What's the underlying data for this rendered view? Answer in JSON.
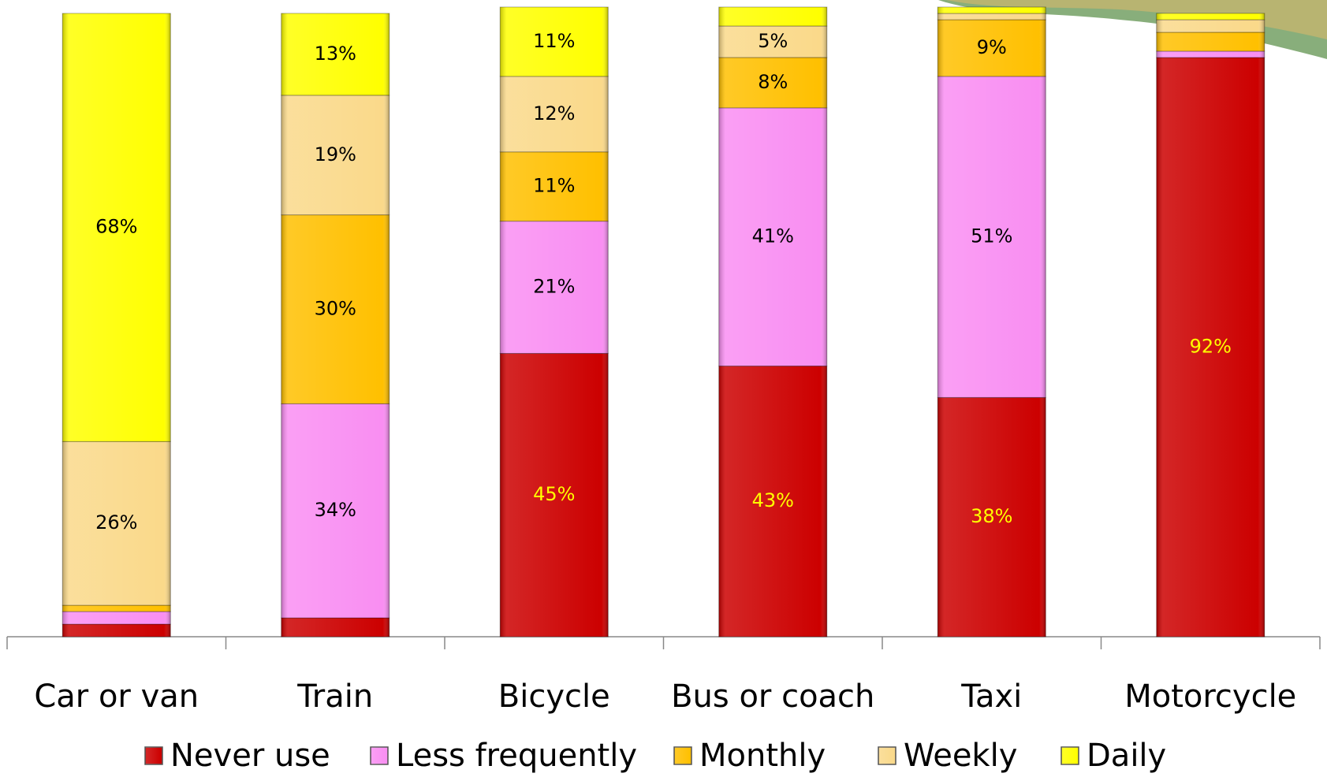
{
  "chart_data": {
    "type": "stacked-bar",
    "categories": [
      "Car or van",
      "Train",
      "Bicycle",
      "Bus or coach",
      "Taxi",
      "Motorcycle"
    ],
    "ylim": [
      0,
      100
    ],
    "series": [
      {
        "name": "Never use",
        "color": "#cc0000",
        "label_color": "#ffff00",
        "values": [
          2,
          3,
          45,
          43,
          38,
          92
        ],
        "value_labels": [
          null,
          null,
          "45%",
          "43%",
          "38%",
          "92%"
        ]
      },
      {
        "name": "Less frequently",
        "color": "#f98ef2",
        "label_color": "#000000",
        "values": [
          2,
          34,
          21,
          41,
          51,
          1
        ],
        "value_labels": [
          null,
          "34%",
          "21%",
          "41%",
          "51%",
          null
        ]
      },
      {
        "name": "Monthly",
        "color": "#ffc000",
        "label_color": "#000000",
        "values": [
          1,
          30,
          11,
          8,
          9,
          3
        ],
        "value_labels": [
          null,
          "30%",
          "11%",
          "8%",
          "9%",
          null
        ]
      },
      {
        "name": "Weekly",
        "color": "#fad98a",
        "label_color": "#000000",
        "values": [
          26,
          19,
          12,
          5,
          1,
          2
        ],
        "value_labels": [
          "26%",
          "19%",
          "12%",
          "5%",
          null,
          null
        ]
      },
      {
        "name": "Daily",
        "color": "#ffff00",
        "label_color": "#000000",
        "values": [
          68,
          13,
          11,
          3,
          1,
          1
        ],
        "value_labels": [
          "68%",
          "13%",
          "11%",
          null,
          null,
          null
        ]
      }
    ]
  }
}
